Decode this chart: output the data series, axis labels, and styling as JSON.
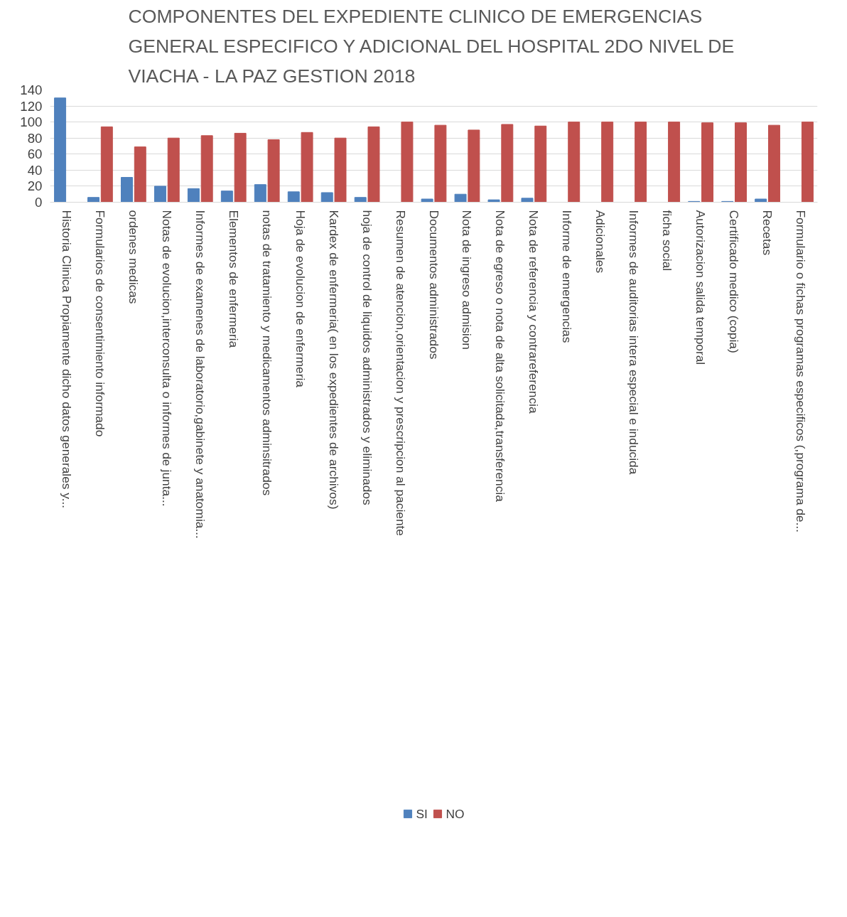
{
  "chart_data": {
    "type": "bar",
    "title": "COMPONENTES DEL EXPEDIENTE CLINICO DE EMERGENCIAS GENERAL ESPECIFICO Y ADICIONAL DEL HOSPITAL 2DO NIVEL DE VIACHA - LA PAZ GESTION 2018",
    "categories": [
      "Historia Clinica Propiamente dicho datos generales y...",
      "Formularios de consentimiento informado",
      "ordenes medicas",
      "Notas de evolucion,interconsulta o informes de junta...",
      "Informes de examenes de laboratorio,gabinete y anatomia...",
      "Elementos de enfermeria",
      "notas de tratamiento y medicamentos adminsitrados",
      "Hoja de evolucion de enfermeria",
      "Kardex de enfermeria( en los expedientes de archivos)",
      "hoja de control de liquidos administrados y eliminados",
      "Resumen de atencion,orientacion y prescripcion al paciente",
      "Documentos administrados",
      "Nota de ingreso  admision",
      "Nota de egreso o nota de alta solicitada,transferencia",
      "Nota de referencia y contrareferencia",
      "Informe de emergencias",
      "Adicionales",
      "Informes de auditorias intera  especial e inducida",
      "ficha social",
      "Autorizacion salida temporal",
      "Certificado medico (copia)",
      "Recetas",
      "Formulario o fichas programas especificos (,programa de..."
    ],
    "series": [
      {
        "name": "SI",
        "color": "#4f81bd",
        "values": [
          130,
          6,
          31,
          20,
          17,
          14,
          22,
          13,
          12,
          6,
          0,
          4,
          10,
          3,
          5,
          0,
          0,
          0,
          0,
          1,
          1,
          4,
          0
        ]
      },
      {
        "name": "NO",
        "color": "#c0504d",
        "values": [
          0,
          94,
          69,
          80,
          83,
          86,
          78,
          87,
          80,
          94,
          100,
          96,
          90,
          97,
          95,
          100,
          100,
          100,
          100,
          99,
          99,
          96,
          100
        ]
      }
    ],
    "ylim": [
      0,
      140
    ],
    "yticks": [
      0,
      20,
      40,
      60,
      80,
      100,
      120,
      140
    ],
    "grid": "y",
    "legend": "bottom"
  }
}
